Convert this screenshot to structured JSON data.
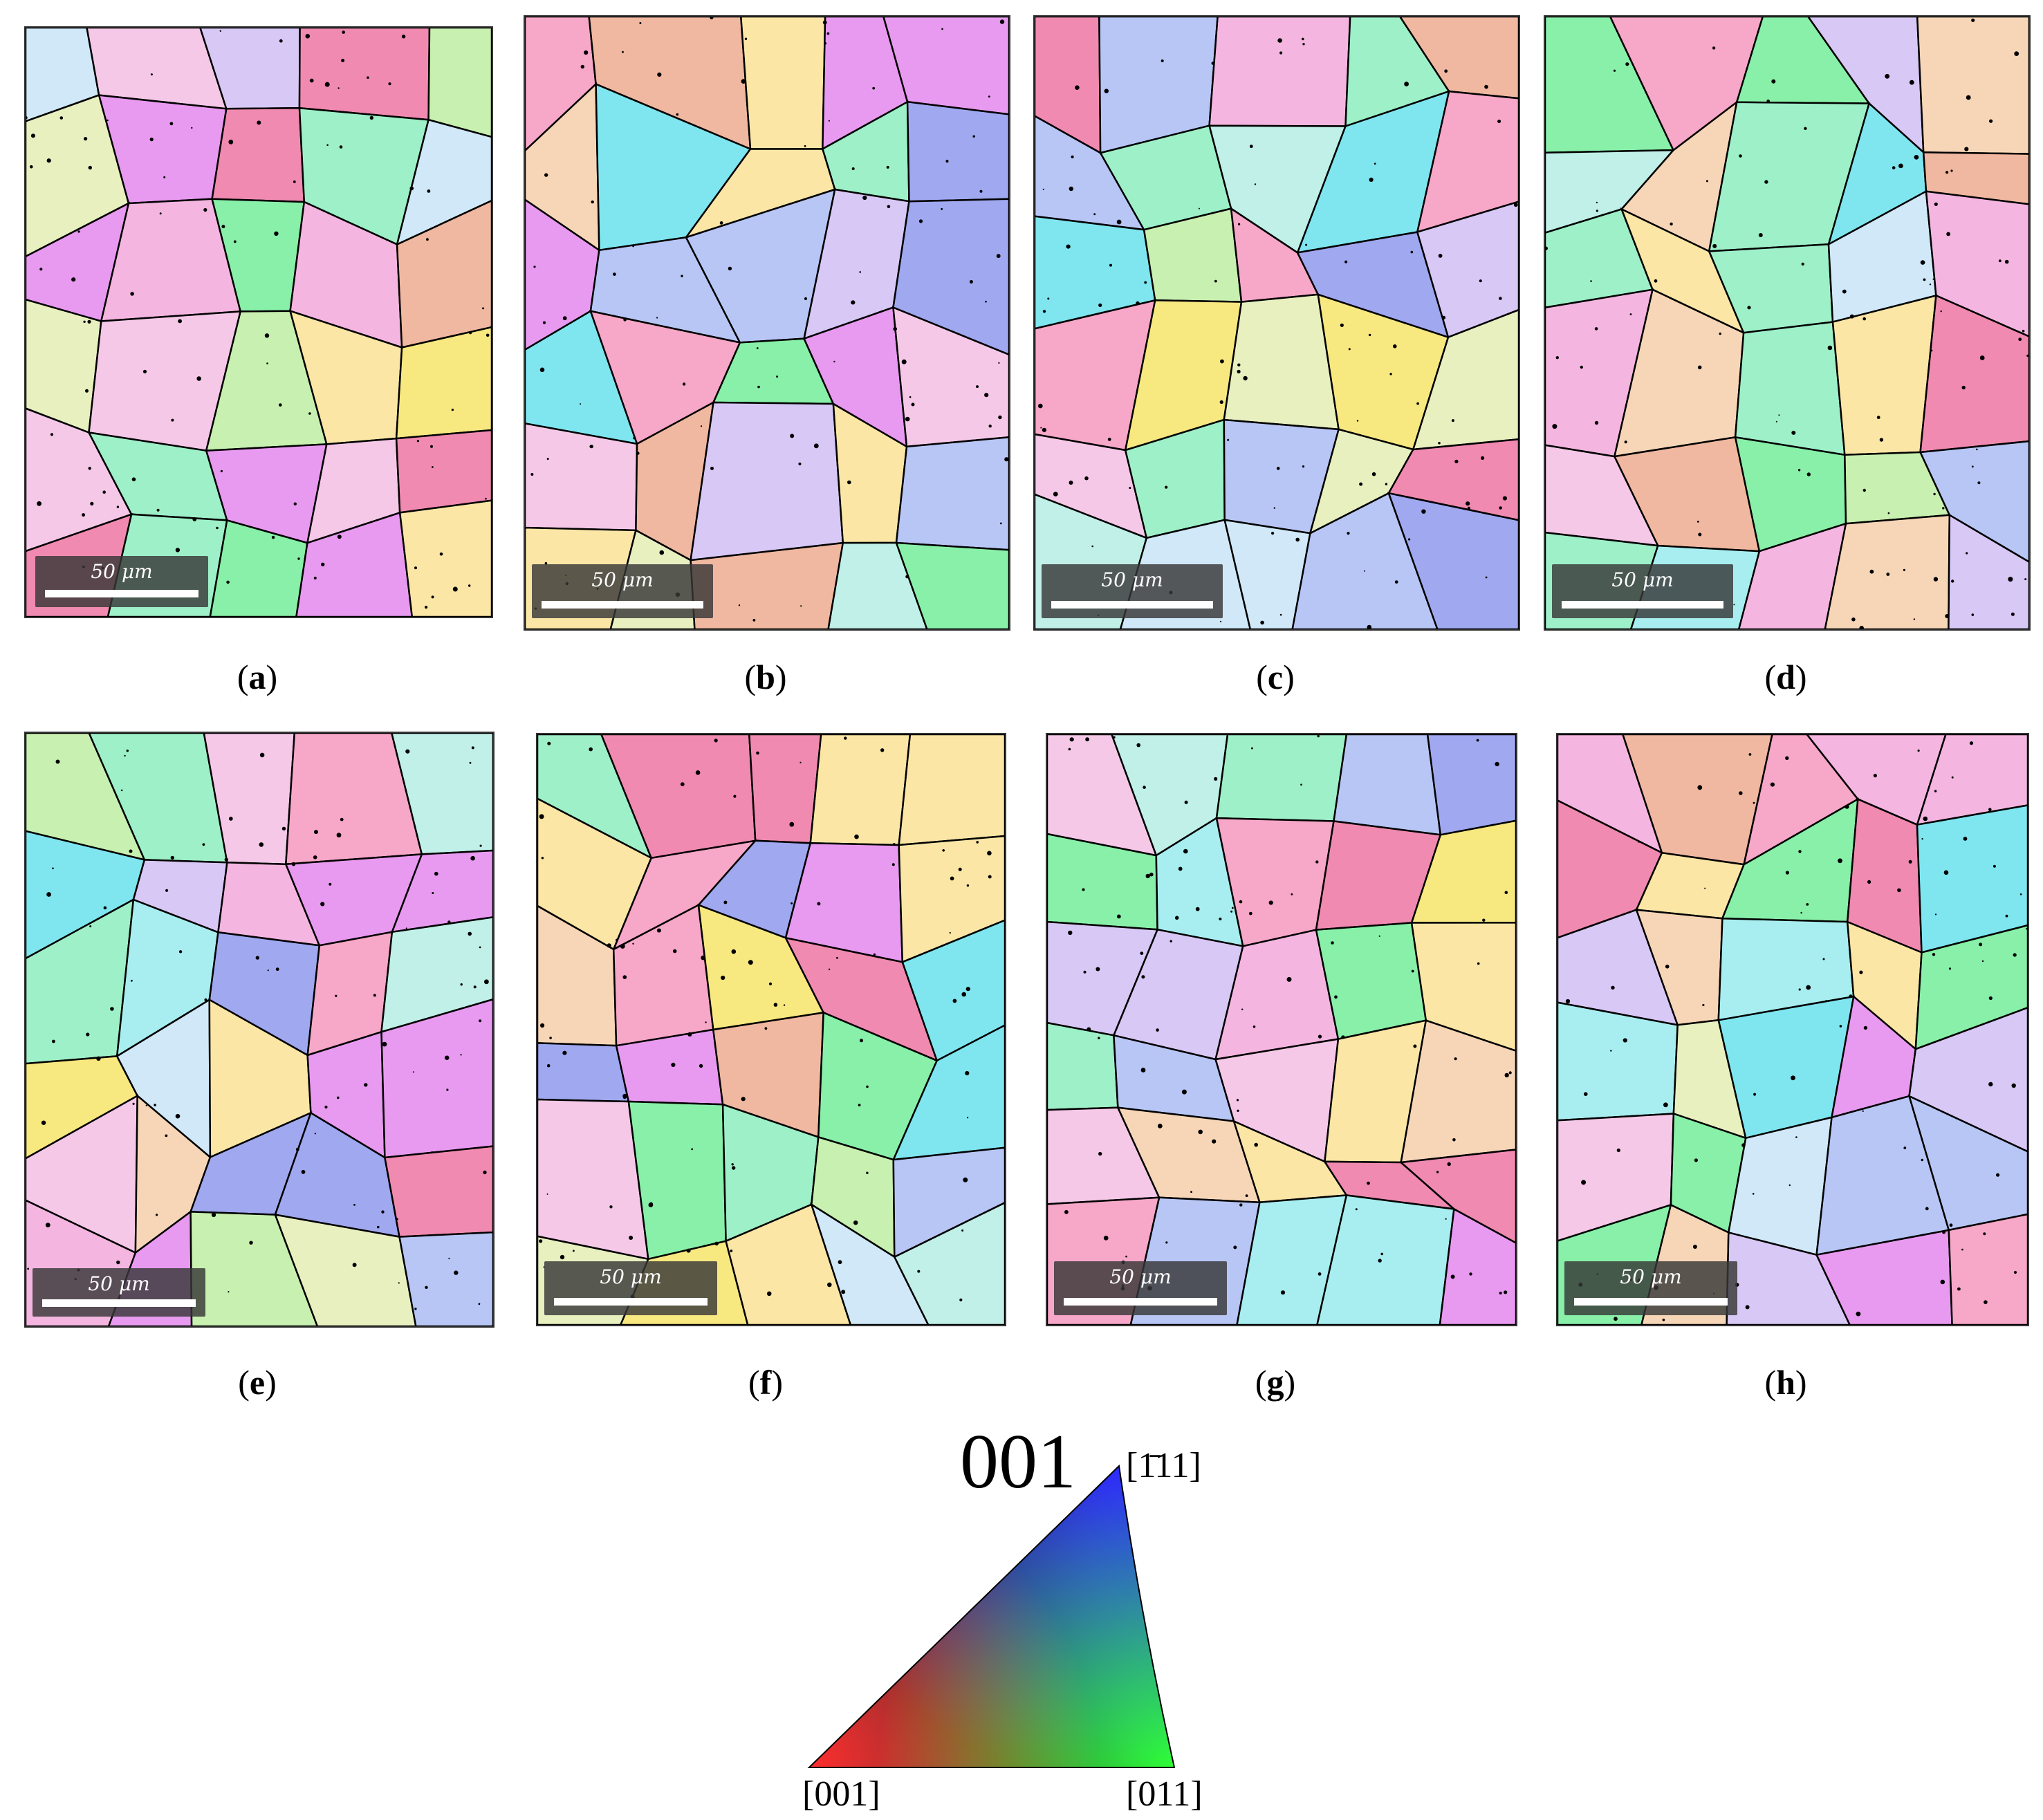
{
  "figure": {
    "panels": [
      {
        "id": "a",
        "caption_open": "(",
        "caption_letter": "a",
        "caption_close": ")",
        "scale_label": "50 μm"
      },
      {
        "id": "b",
        "caption_open": "(",
        "caption_letter": "b",
        "caption_close": ")",
        "scale_label": "50 μm"
      },
      {
        "id": "c",
        "caption_open": "(",
        "caption_letter": "c",
        "caption_close": ")",
        "scale_label": "50 μm"
      },
      {
        "id": "d",
        "caption_open": "(",
        "caption_letter": "d",
        "caption_close": ")",
        "scale_label": "50 μm"
      },
      {
        "id": "e",
        "caption_open": "(",
        "caption_letter": "e",
        "caption_close": ")",
        "scale_label": "50 μm"
      },
      {
        "id": "f",
        "caption_open": "(",
        "caption_letter": "f",
        "caption_close": ")",
        "scale_label": "50 μm"
      },
      {
        "id": "g",
        "caption_open": "(",
        "caption_letter": "g",
        "caption_close": ")",
        "scale_label": "50 μm"
      },
      {
        "id": "h",
        "caption_open": "(",
        "caption_letter": "h",
        "caption_close": ")",
        "scale_label": "50 μm"
      }
    ],
    "ipf_key": {
      "title": "001",
      "corner_top": "[1̄11]",
      "corner_left": "[001]",
      "corner_right": "[011]",
      "colors": {
        "corner_001": "#ff0000",
        "corner_011": "#00ff00",
        "corner_111": "#0000ff"
      }
    },
    "boundary_color": "#000000"
  }
}
